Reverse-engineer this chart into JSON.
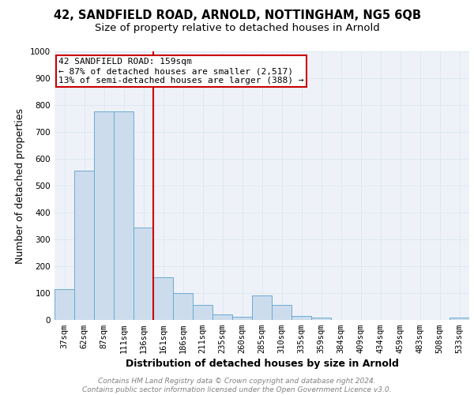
{
  "title_line1": "42, SANDFIELD ROAD, ARNOLD, NOTTINGHAM, NG5 6QB",
  "title_line2": "Size of property relative to detached houses in Arnold",
  "xlabel": "Distribution of detached houses by size in Arnold",
  "ylabel": "Number of detached properties",
  "bar_labels": [
    "37sqm",
    "62sqm",
    "87sqm",
    "111sqm",
    "136sqm",
    "161sqm",
    "186sqm",
    "211sqm",
    "235sqm",
    "260sqm",
    "285sqm",
    "310sqm",
    "335sqm",
    "359sqm",
    "384sqm",
    "409sqm",
    "434sqm",
    "459sqm",
    "483sqm",
    "508sqm",
    "533sqm"
  ],
  "bar_values": [
    115,
    555,
    775,
    775,
    345,
    160,
    100,
    55,
    20,
    12,
    90,
    55,
    15,
    10,
    0,
    0,
    0,
    0,
    0,
    0,
    10
  ],
  "bar_color": "#ccdcec",
  "bar_edge_color": "#6aaad4",
  "property_line_color": "#cc0000",
  "annotation_text": "42 SANDFIELD ROAD: 159sqm\n← 87% of detached houses are smaller (2,517)\n13% of semi-detached houses are larger (388) →",
  "annotation_box_color": "white",
  "annotation_box_edge_color": "#cc0000",
  "ylim": [
    0,
    1000
  ],
  "yticks": [
    0,
    100,
    200,
    300,
    400,
    500,
    600,
    700,
    800,
    900,
    1000
  ],
  "grid_color": "#dde8f0",
  "background_color": "#eef2f8",
  "footer_text": "Contains HM Land Registry data © Crown copyright and database right 2024.\nContains public sector information licensed under the Open Government Licence v3.0.",
  "title_fontsize": 10.5,
  "subtitle_fontsize": 9.5,
  "axis_label_fontsize": 9,
  "tick_fontsize": 7.5,
  "footer_fontsize": 6.5,
  "annotation_fontsize": 8
}
